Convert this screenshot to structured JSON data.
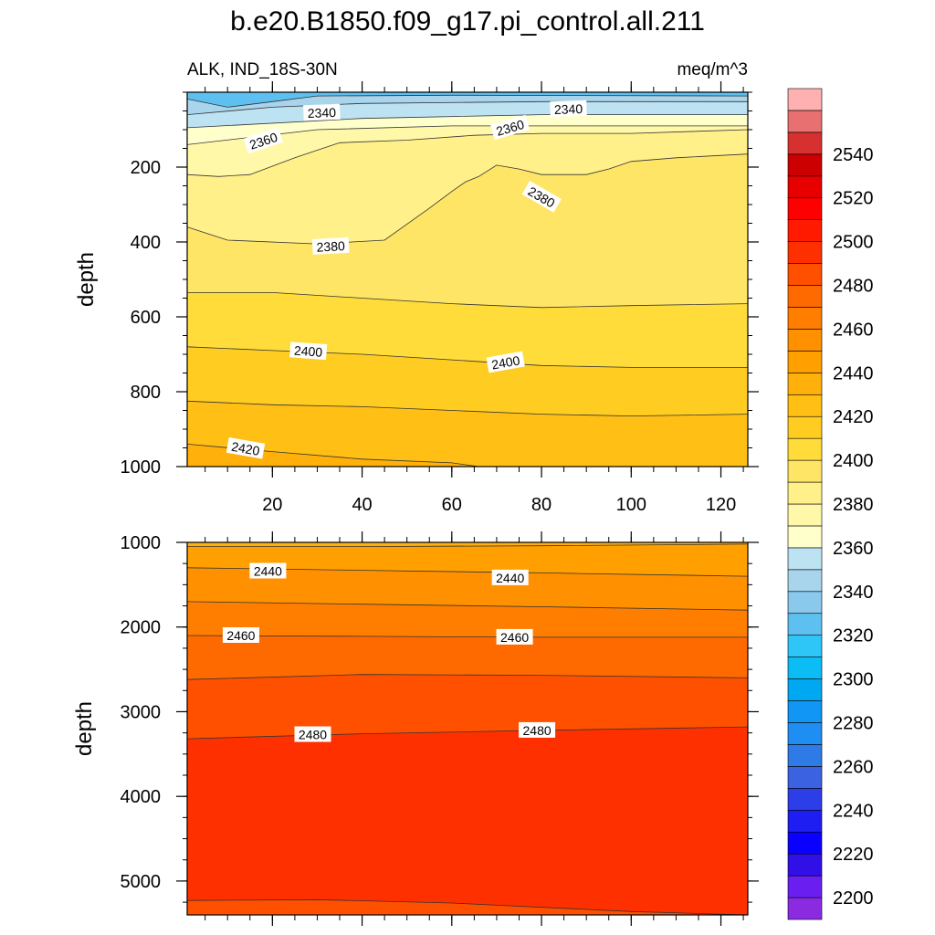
{
  "chart_data": {
    "type": "contour",
    "title": "b.e20.B1850.f09_g17.pi_control.all.211",
    "left_subtitle": "ALK, IND_18S-30N",
    "right_subtitle": "meq/m^3",
    "ylabel": "depth",
    "colorbar": {
      "min": 2190,
      "max": 2560,
      "step": 10,
      "tick_labels": [
        "2200",
        "2220",
        "2240",
        "2260",
        "2280",
        "2300",
        "2320",
        "2340",
        "2360",
        "2380",
        "2400",
        "2420",
        "2440",
        "2460",
        "2480",
        "2500",
        "2520",
        "2540"
      ],
      "colors": [
        "#8a2be2",
        "#6a1ff0",
        "#3010e6",
        "#0a00ff",
        "#1e1ef2",
        "#2c3ee8",
        "#3b62e0",
        "#2e7ae6",
        "#1e8ef2",
        "#1296f5",
        "#00a8f2",
        "#0bbcf5",
        "#2dc6f7",
        "#5ec0f0",
        "#8ac8ec",
        "#a8d4ec",
        "#bde2f2",
        "#ffffcc",
        "#fff8a8",
        "#fff08a",
        "#ffe566",
        "#ffdc3a",
        "#ffcc22",
        "#ffbf14",
        "#ffb00a",
        "#ffa000",
        "#ff9000",
        "#ff7e00",
        "#ff6a00",
        "#ff5000",
        "#ff3000",
        "#ff1a00",
        "#ff0000",
        "#e80000",
        "#cc0000",
        "#d63030",
        "#e87070",
        "#ffb0b0"
      ]
    },
    "panels": [
      {
        "name": "upper",
        "ylim": [
          1000,
          0
        ],
        "xlim": [
          1,
          126
        ],
        "yticks": [
          200,
          400,
          600,
          800,
          1000
        ],
        "xticks": [
          20,
          40,
          60,
          80,
          100,
          120
        ],
        "bands": [
          {
            "value": 2320,
            "top": [
              0,
              0,
              0,
              0,
              0
            ],
            "bottom": [
              [
                1,
                18
              ],
              [
                10,
                40
              ],
              [
                20,
                25
              ],
              [
                30,
                10
              ],
              [
                60,
                8
              ],
              [
                126,
                10
              ]
            ]
          },
          {
            "value": 2340,
            "top": [],
            "bottom": [
              [
                1,
                60
              ],
              [
                20,
                40
              ],
              [
                40,
                30
              ],
              [
                80,
                25
              ],
              [
                126,
                25
              ]
            ]
          },
          {
            "value": 2350,
            "top": [],
            "bottom": [
              [
                1,
                95
              ],
              [
                40,
                70
              ],
              [
                80,
                60
              ],
              [
                126,
                60
              ]
            ]
          },
          {
            "value": 2360,
            "top": [],
            "bottom": [
              [
                1,
                140
              ],
              [
                30,
                100
              ],
              [
                60,
                90
              ],
              [
                90,
                90
              ],
              [
                126,
                90
              ]
            ]
          },
          {
            "value": 2370,
            "top": [],
            "bottom": [
              [
                1,
                220
              ],
              [
                8,
                225
              ],
              [
                15,
                220
              ],
              [
                25,
                175
              ],
              [
                35,
                135
              ],
              [
                50,
                128
              ],
              [
                65,
                115
              ],
              [
                80,
                110
              ],
              [
                100,
                110
              ],
              [
                126,
                100
              ]
            ]
          },
          {
            "value": 2380,
            "top": [],
            "bottom": [
              [
                1,
                360
              ],
              [
                10,
                395
              ],
              [
                30,
                405
              ],
              [
                45,
                395
              ],
              [
                55,
                310
              ],
              [
                60,
                265
              ],
              [
                63,
                240
              ],
              [
                66,
                225
              ],
              [
                70,
                195
              ],
              [
                75,
                205
              ],
              [
                80,
                220
              ],
              [
                90,
                220
              ],
              [
                95,
                205
              ],
              [
                100,
                185
              ],
              [
                110,
                175
              ],
              [
                126,
                165
              ]
            ]
          },
          {
            "value": 2390,
            "top": [],
            "bottom": [
              [
                1,
                535
              ],
              [
                20,
                535
              ],
              [
                40,
                550
              ],
              [
                60,
                565
              ],
              [
                80,
                575
              ],
              [
                100,
                570
              ],
              [
                126,
                565
              ]
            ]
          },
          {
            "value": 2400,
            "top": [],
            "bottom": [
              [
                1,
                680
              ],
              [
                20,
                690
              ],
              [
                40,
                700
              ],
              [
                60,
                715
              ],
              [
                80,
                730
              ],
              [
                100,
                735
              ],
              [
                126,
                735
              ]
            ]
          },
          {
            "value": 2410,
            "top": [],
            "bottom": [
              [
                1,
                825
              ],
              [
                20,
                835
              ],
              [
                40,
                840
              ],
              [
                60,
                850
              ],
              [
                80,
                860
              ],
              [
                100,
                865
              ],
              [
                126,
                860
              ]
            ]
          },
          {
            "value": 2420,
            "top": [],
            "bottom": [
              [
                1,
                940
              ],
              [
                20,
                960
              ],
              [
                40,
                980
              ],
              [
                60,
                990
              ],
              [
                66,
                1000
              ],
              [
                126,
                1000
              ]
            ]
          },
          {
            "value": 2430,
            "top": [],
            "bottom": [
              [
                1,
                1000
              ],
              [
                126,
                1000
              ]
            ]
          }
        ],
        "contour_labels": [
          {
            "text": "2340",
            "x": 31,
            "depth": 55,
            "angle": -2
          },
          {
            "text": "2340",
            "x": 86,
            "depth": 45,
            "angle": -2
          },
          {
            "text": "2360",
            "x": 18,
            "depth": 130,
            "angle": -18
          },
          {
            "text": "2360",
            "x": 73,
            "depth": 95,
            "angle": -16
          },
          {
            "text": "2380",
            "x": 33,
            "depth": 412,
            "angle": -3
          },
          {
            "text": "2380",
            "x": 80,
            "depth": 280,
            "angle": 30
          },
          {
            "text": "2400",
            "x": 28,
            "depth": 692,
            "angle": 4
          },
          {
            "text": "2400",
            "x": 72,
            "depth": 722,
            "angle": -10
          },
          {
            "text": "2420",
            "x": 14,
            "depth": 952,
            "angle": 10
          }
        ]
      },
      {
        "name": "lower",
        "ylim": [
          5400,
          1000
        ],
        "xlim": [
          1,
          126
        ],
        "yticks": [
          1000,
          2000,
          3000,
          4000,
          5000
        ],
        "xticks": [
          20,
          40,
          60,
          80,
          100,
          120
        ],
        "bands": [
          {
            "value": 2430,
            "top": [],
            "bottom": [
              [
                1,
                1050
              ],
              [
                40,
                1050
              ],
              [
                80,
                1040
              ],
              [
                126,
                1020
              ]
            ]
          },
          {
            "value": 2440,
            "top": [],
            "bottom": [
              [
                1,
                1300
              ],
              [
                40,
                1330
              ],
              [
                80,
                1360
              ],
              [
                126,
                1400
              ]
            ]
          },
          {
            "value": 2450,
            "top": [],
            "bottom": [
              [
                1,
                1700
              ],
              [
                40,
                1730
              ],
              [
                80,
                1760
              ],
              [
                126,
                1800
              ]
            ]
          },
          {
            "value": 2460,
            "top": [],
            "bottom": [
              [
                1,
                2100
              ],
              [
                40,
                2110
              ],
              [
                80,
                2120
              ],
              [
                126,
                2120
              ]
            ]
          },
          {
            "value": 2470,
            "top": [],
            "bottom": [
              [
                1,
                2620
              ],
              [
                40,
                2560
              ],
              [
                80,
                2570
              ],
              [
                126,
                2600
              ]
            ]
          },
          {
            "value": 2480,
            "top": [],
            "bottom": [
              [
                1,
                3320
              ],
              [
                40,
                3260
              ],
              [
                80,
                3220
              ],
              [
                126,
                3180
              ]
            ]
          },
          {
            "value": 2490,
            "top": [],
            "bottom": [
              [
                1,
                5230
              ],
              [
                30,
                5220
              ],
              [
                60,
                5260
              ],
              [
                100,
                5360
              ],
              [
                126,
                5400
              ]
            ]
          },
          {
            "value": 2480,
            "top": [],
            "bottom": [
              [
                1,
                5400
              ],
              [
                126,
                5400
              ]
            ]
          }
        ],
        "contour_labels": [
          {
            "text": "2440",
            "x": 19,
            "depth": 1340,
            "angle": 0
          },
          {
            "text": "2440",
            "x": 73,
            "depth": 1420,
            "angle": 0
          },
          {
            "text": "2460",
            "x": 13,
            "depth": 2100,
            "angle": 0
          },
          {
            "text": "2460",
            "x": 74,
            "depth": 2120,
            "angle": 0
          },
          {
            "text": "2480",
            "x": 29,
            "depth": 3270,
            "angle": 0
          },
          {
            "text": "2480",
            "x": 79,
            "depth": 3220,
            "angle": 0
          }
        ]
      }
    ]
  }
}
